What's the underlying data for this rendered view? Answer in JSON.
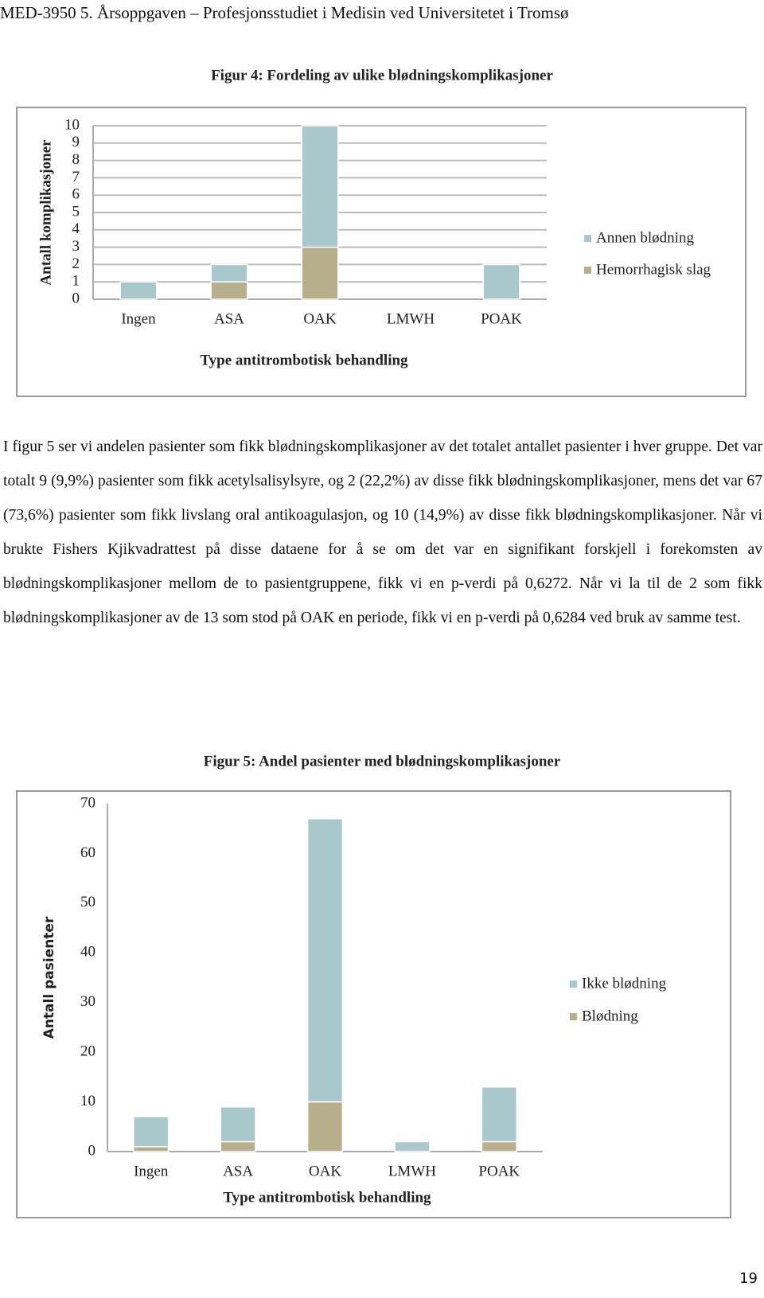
{
  "header": {
    "title": "MED-3950 5. Årsoppgaven – Profesjonsstudiet i Medisin ved Universitetet i Tromsø"
  },
  "chart_data": [
    {
      "type": "stacked-bar",
      "title": "Figur 4: Fordeling av ulike blødningskomplikasjoner",
      "x_label": "Type antitrombotisk behandling",
      "y_label": "Antall komplikasjoner",
      "categories": [
        "Ingen",
        "ASA",
        "OAK",
        "LMWH",
        "POAK"
      ],
      "series": [
        {
          "name": "Annen blødning",
          "color": "#a8c8cb",
          "values": [
            1,
            1,
            7,
            0,
            2
          ]
        },
        {
          "name": "Hemorrhagisk slag",
          "color": "#b7ae8c",
          "values": [
            0,
            1,
            3,
            0,
            0
          ]
        }
      ],
      "ylim": [
        0,
        10
      ],
      "yticks": [
        0,
        1,
        2,
        3,
        4,
        5,
        6,
        7,
        8,
        9,
        10
      ],
      "grid": true,
      "legend": "right"
    },
    {
      "type": "stacked-bar",
      "title": "Figur 5: Andel pasienter med blødningskomplikasjoner",
      "x_label": "Type antitrombotisk behandling",
      "y_label": "Antall pasienter",
      "categories": [
        "Ingen",
        "ASA",
        "OAK",
        "LMWH",
        "POAK"
      ],
      "series": [
        {
          "name": "Ikke blødning",
          "color": "#a8c8cb",
          "values": [
            6,
            7,
            57,
            2,
            11
          ]
        },
        {
          "name": "Blødning",
          "color": "#b7ae8c",
          "values": [
            1,
            2,
            10,
            0,
            2
          ]
        }
      ],
      "ylim": [
        0,
        70
      ],
      "yticks": [
        0,
        10,
        20,
        30,
        40,
        50,
        60,
        70
      ],
      "grid": false,
      "legend": "right"
    }
  ],
  "paragraph": "I figur 5 ser vi andelen pasienter som fikk blødningskomplikasjoner av det totalet antallet pasienter i hver gruppe. Det var totalt 9 (9,9%) pasienter som fikk acetylsalisylsyre, og 2 (22,2%) av disse fikk blødningskomplikasjoner, mens det var 67 (73,6%) pasienter som fikk livslang oral antikoagulasjon, og 10 (14,9%) av disse fikk blødningskomplikasjoner. Når vi brukte Fishers Kjikvadrattest på disse dataene for å se om det var en signifikant forskjell i forekomsten av blødningskomplikasjoner mellom de to pasientgruppene, fikk vi en p-verdi på 0,6272. Når vi la til de 2 som fikk blødningskomplikasjoner av de 13 som stod på OAK en periode, fikk vi en p-verdi på 0,6284 ved bruk av samme test.",
  "page_number": "19"
}
